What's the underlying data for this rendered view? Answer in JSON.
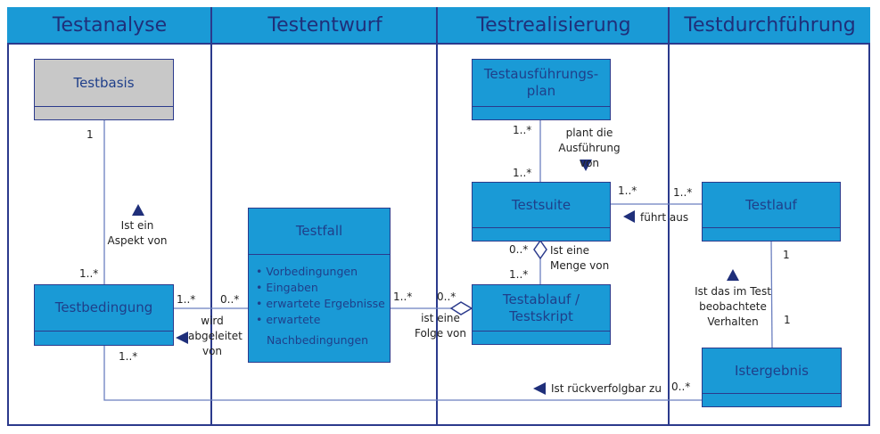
{
  "colors": {
    "header": "#1a9ad6",
    "class_box": "#1a9ad6",
    "base_box": "#c8c8c8",
    "border": "#2b3a8c",
    "text": "#1f2f7a"
  },
  "lanes": [
    "Testanalyse",
    "Testentwurf",
    "Testrealisierung",
    "Testdurchführung"
  ],
  "classes": {
    "testbasis": "Testbasis",
    "testbedingung": "Testbedingung",
    "testfall": "Testfall",
    "testfall_attributes": [
      "Vorbedingungen",
      "Eingaben",
      "erwartete Ergebnisse",
      "erwartete",
      "Nachbedingungen"
    ],
    "testausfuehrungsplan": "Testausführungs-plan",
    "testsuite": "Testsuite",
    "testablauf": "Testablauf / Testskript",
    "testlauf": "Testlauf",
    "istergebnis": "Istergebnis"
  },
  "associations": {
    "aspekt": {
      "label": "Ist ein Aspekt von",
      "m1": "1",
      "m2": "1..*"
    },
    "abgeleitet": {
      "label": "wird abgeleitet von",
      "m1": "1..*",
      "m2": "0..*"
    },
    "folge": {
      "label": "ist eine Folge von",
      "m1": "1..*",
      "m2": "0..*"
    },
    "plant": {
      "label": "plant die Ausführung von",
      "m1": "1..*",
      "m2": "1..*"
    },
    "menge": {
      "label": "Ist eine Menge von",
      "m1": "0..*",
      "m2": "1..*"
    },
    "fuehrt": {
      "label": "führt aus",
      "m1": "1..*",
      "m2": "1..*"
    },
    "verhalten": {
      "label": "Ist das im Test beobachtete Verhalten",
      "m1": "1",
      "m2": "1"
    },
    "rueckverfolgbar": {
      "label": "Ist rückverfolgbar zu",
      "m1": "1..*",
      "m2": "0..*"
    }
  }
}
